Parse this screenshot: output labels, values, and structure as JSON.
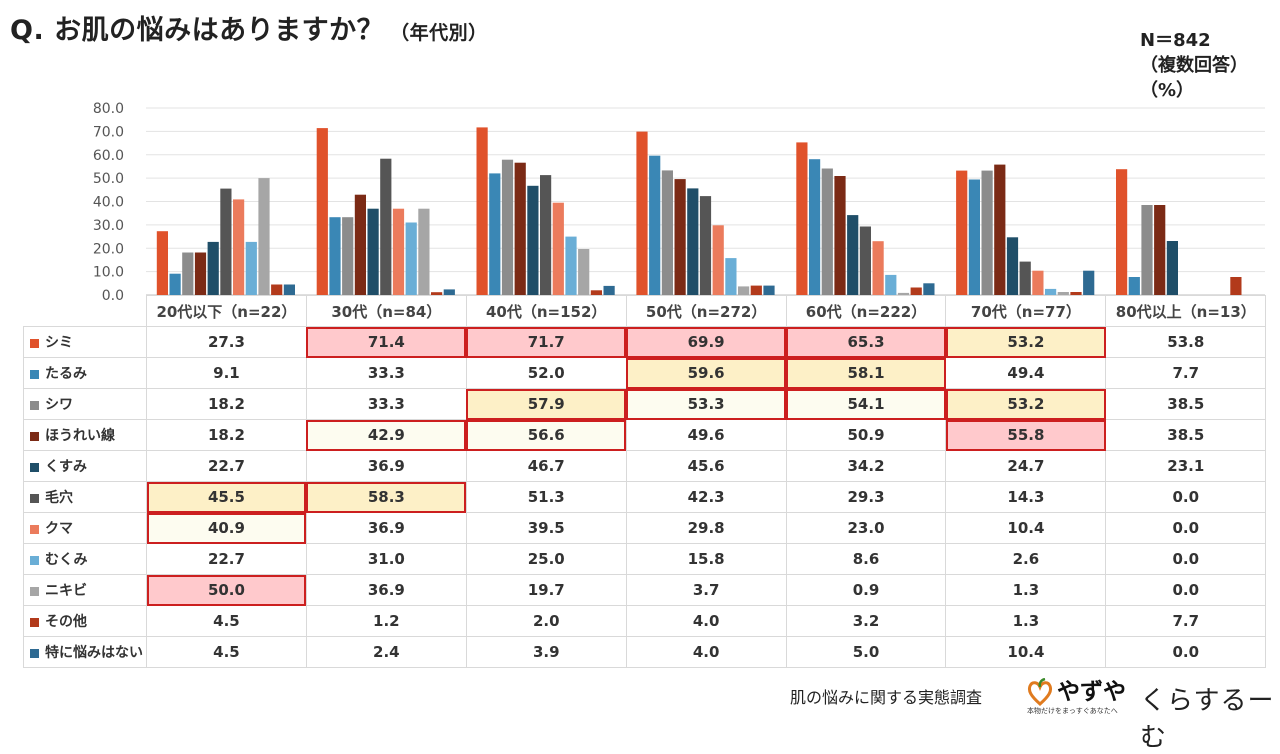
{
  "title": {
    "main": "Q. お肌の悩みはありますか？",
    "sub": "（年代別）"
  },
  "sample": {
    "n": "N＝842",
    "multi": "（複数回答）",
    "unit": "（%）"
  },
  "footer": {
    "survey": "肌の悩みに関する実態調査",
    "brand1": "やずや",
    "brand1_tagline": "本物だけをまっすぐあなたへ",
    "brand2": "くらするーむ"
  },
  "chart_data": {
    "type": "bar",
    "ylim": [
      0,
      80
    ],
    "yticks": [
      "0.0",
      "10.0",
      "20.0",
      "30.0",
      "40.0",
      "50.0",
      "60.0",
      "70.0",
      "80.0"
    ],
    "categories": [
      "20代以下（n=22）",
      "30代（n=84）",
      "40代（n=152）",
      "50代（n=272）",
      "60代（n=222）",
      "70代（n=77）",
      "80代以上（n=13）"
    ],
    "series": [
      {
        "name": "シミ",
        "color": "#e0522b",
        "values": [
          "27.3",
          "71.4",
          "71.7",
          "69.9",
          "65.3",
          "53.2",
          "53.8"
        ]
      },
      {
        "name": "たるみ",
        "color": "#3a87b5",
        "values": [
          "9.1",
          "33.3",
          "52.0",
          "59.6",
          "58.1",
          "49.4",
          "7.7"
        ]
      },
      {
        "name": "シワ",
        "color": "#8c8c8c",
        "values": [
          "18.2",
          "33.3",
          "57.9",
          "53.3",
          "54.1",
          "53.2",
          "38.5"
        ]
      },
      {
        "name": "ほうれい線",
        "color": "#7b2a15",
        "values": [
          "18.2",
          "42.9",
          "56.6",
          "49.6",
          "50.9",
          "55.8",
          "38.5"
        ]
      },
      {
        "name": "くすみ",
        "color": "#1f4e68",
        "values": [
          "22.7",
          "36.9",
          "46.7",
          "45.6",
          "34.2",
          "24.7",
          "23.1"
        ]
      },
      {
        "name": "毛穴",
        "color": "#555555",
        "values": [
          "45.5",
          "58.3",
          "51.3",
          "42.3",
          "29.3",
          "14.3",
          "0.0"
        ]
      },
      {
        "name": "クマ",
        "color": "#eb7b5c",
        "values": [
          "40.9",
          "36.9",
          "39.5",
          "29.8",
          "23.0",
          "10.4",
          "0.0"
        ]
      },
      {
        "name": "むくみ",
        "color": "#6aaed6",
        "values": [
          "22.7",
          "31.0",
          "25.0",
          "15.8",
          "8.6",
          "2.6",
          "0.0"
        ]
      },
      {
        "name": "ニキビ",
        "color": "#a6a6a6",
        "values": [
          "50.0",
          "36.9",
          "19.7",
          "3.7",
          "0.9",
          "1.3",
          "0.0"
        ]
      },
      {
        "name": "その他",
        "color": "#b23a1b",
        "values": [
          "4.5",
          "1.2",
          "2.0",
          "4.0",
          "3.2",
          "1.3",
          "7.7"
        ]
      },
      {
        "name": "特に悩みはない",
        "color": "#2e6a92",
        "values": [
          "4.5",
          "2.4",
          "3.9",
          "4.0",
          "5.0",
          "10.4",
          "0.0"
        ]
      }
    ],
    "highlights": [
      {
        "series": 0,
        "col": 1,
        "level": "red"
      },
      {
        "series": 0,
        "col": 2,
        "level": "red"
      },
      {
        "series": 0,
        "col": 3,
        "level": "red"
      },
      {
        "series": 0,
        "col": 4,
        "level": "red"
      },
      {
        "series": 0,
        "col": 5,
        "level": "yellow"
      },
      {
        "series": 1,
        "col": 3,
        "level": "yellow"
      },
      {
        "series": 1,
        "col": 4,
        "level": "yellow"
      },
      {
        "series": 2,
        "col": 2,
        "level": "yellow"
      },
      {
        "series": 2,
        "col": 3,
        "level": "pale"
      },
      {
        "series": 2,
        "col": 4,
        "level": "pale"
      },
      {
        "series": 2,
        "col": 5,
        "level": "yellow"
      },
      {
        "series": 3,
        "col": 1,
        "level": "pale"
      },
      {
        "series": 3,
        "col": 2,
        "level": "pale"
      },
      {
        "series": 3,
        "col": 5,
        "level": "red"
      },
      {
        "series": 5,
        "col": 0,
        "level": "yellow"
      },
      {
        "series": 5,
        "col": 1,
        "level": "yellow"
      },
      {
        "series": 6,
        "col": 0,
        "level": "pale"
      },
      {
        "series": 8,
        "col": 0,
        "level": "red"
      }
    ]
  }
}
